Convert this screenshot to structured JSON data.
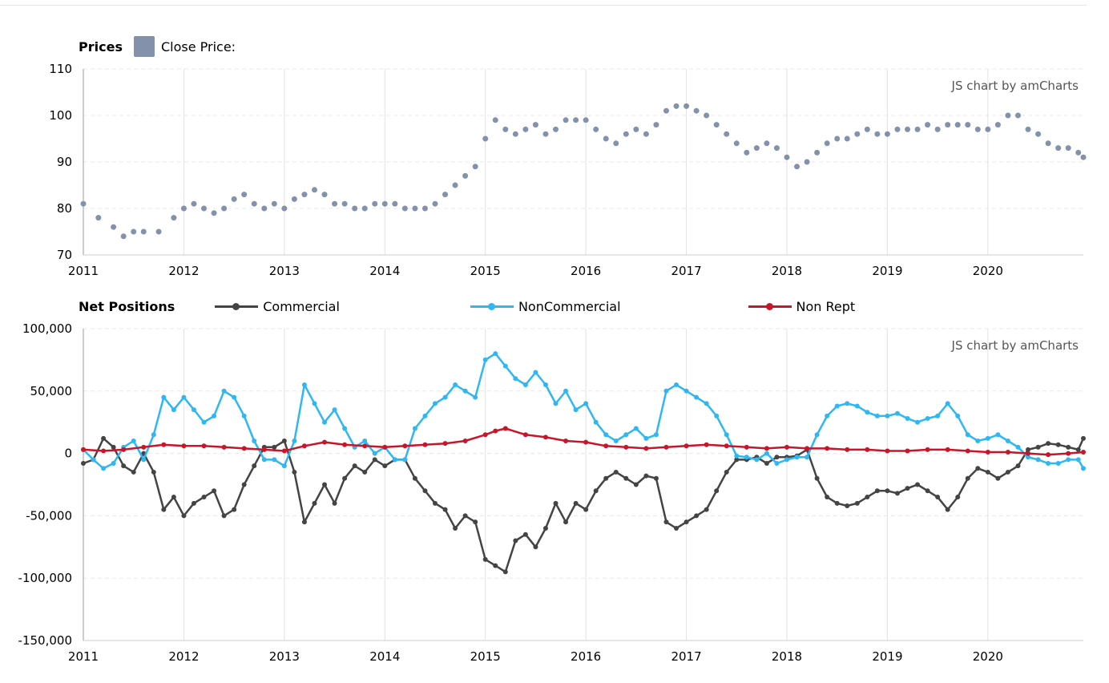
{
  "credit": "JS chart by amCharts",
  "chart_data": [
    {
      "type": "scatter",
      "title": "Prices",
      "legend": [
        {
          "name": "Close Price:",
          "color": "#8391AB"
        }
      ],
      "x_ticks": [
        "2011",
        "2012",
        "2013",
        "2014",
        "2015",
        "2016",
        "2017",
        "2018",
        "2019",
        "2020"
      ],
      "x_range": [
        2011.0,
        2020.95
      ],
      "ylim": [
        70,
        110
      ],
      "y_ticks": [
        "70",
        "80",
        "90",
        "100",
        "110"
      ],
      "grid": true,
      "series": [
        {
          "name": "Close Price:",
          "color": "#8391AB",
          "x": [
            2011.0,
            2011.15,
            2011.3,
            2011.4,
            2011.5,
            2011.6,
            2011.75,
            2011.9,
            2012.0,
            2012.1,
            2012.2,
            2012.3,
            2012.4,
            2012.5,
            2012.6,
            2012.7,
            2012.8,
            2012.9,
            2013.0,
            2013.1,
            2013.2,
            2013.3,
            2013.4,
            2013.5,
            2013.6,
            2013.7,
            2013.8,
            2013.9,
            2014.0,
            2014.1,
            2014.2,
            2014.3,
            2014.4,
            2014.5,
            2014.6,
            2014.7,
            2014.8,
            2014.9,
            2015.0,
            2015.1,
            2015.2,
            2015.3,
            2015.4,
            2015.5,
            2015.6,
            2015.7,
            2015.8,
            2015.9,
            2016.0,
            2016.1,
            2016.2,
            2016.3,
            2016.4,
            2016.5,
            2016.6,
            2016.7,
            2016.8,
            2016.9,
            2017.0,
            2017.1,
            2017.2,
            2017.3,
            2017.4,
            2017.5,
            2017.6,
            2017.7,
            2017.8,
            2017.9,
            2018.0,
            2018.1,
            2018.2,
            2018.3,
            2018.4,
            2018.5,
            2018.6,
            2018.7,
            2018.8,
            2018.9,
            2019.0,
            2019.1,
            2019.2,
            2019.3,
            2019.4,
            2019.5,
            2019.6,
            2019.7,
            2019.8,
            2019.9,
            2020.0,
            2020.1,
            2020.2,
            2020.3,
            2020.4,
            2020.5,
            2020.6,
            2020.7,
            2020.8,
            2020.9,
            2020.95
          ],
          "y": [
            81,
            78,
            76,
            74,
            75,
            75,
            75,
            78,
            80,
            81,
            80,
            79,
            80,
            82,
            83,
            81,
            80,
            81,
            80,
            82,
            83,
            84,
            83,
            81,
            81,
            80,
            80,
            81,
            81,
            81,
            80,
            80,
            80,
            81,
            83,
            85,
            87,
            89,
            95,
            99,
            97,
            96,
            97,
            98,
            96,
            97,
            99,
            99,
            99,
            97,
            95,
            94,
            96,
            97,
            96,
            98,
            101,
            102,
            102,
            101,
            100,
            98,
            96,
            94,
            92,
            93,
            94,
            93,
            91,
            89,
            90,
            92,
            94,
            95,
            95,
            96,
            97,
            96,
            96,
            97,
            97,
            97,
            98,
            97,
            98,
            98,
            98,
            97,
            97,
            98,
            100,
            100,
            97,
            96,
            94,
            93,
            93,
            92,
            91
          ]
        }
      ]
    },
    {
      "type": "line",
      "title": "Net Positions",
      "x_ticks": [
        "2011",
        "2012",
        "2013",
        "2014",
        "2015",
        "2016",
        "2017",
        "2018",
        "2019",
        "2020"
      ],
      "x_range": [
        2011.0,
        2020.95
      ],
      "ylim": [
        -150000,
        100000
      ],
      "y_ticks": [
        "-150,000",
        "-100,000",
        "-50,000",
        "0",
        "50,000",
        "100,000"
      ],
      "grid": true,
      "series": [
        {
          "name": "Commercial",
          "color": "#444444",
          "x": [
            2011.0,
            2011.1,
            2011.2,
            2011.3,
            2011.4,
            2011.5,
            2011.6,
            2011.7,
            2011.8,
            2011.9,
            2012.0,
            2012.1,
            2012.2,
            2012.3,
            2012.4,
            2012.5,
            2012.6,
            2012.7,
            2012.8,
            2012.9,
            2013.0,
            2013.1,
            2013.2,
            2013.3,
            2013.4,
            2013.5,
            2013.6,
            2013.7,
            2013.8,
            2013.9,
            2014.0,
            2014.1,
            2014.2,
            2014.3,
            2014.4,
            2014.5,
            2014.6,
            2014.7,
            2014.8,
            2014.9,
            2015.0,
            2015.1,
            2015.2,
            2015.3,
            2015.4,
            2015.5,
            2015.6,
            2015.7,
            2015.8,
            2015.9,
            2016.0,
            2016.1,
            2016.2,
            2016.3,
            2016.4,
            2016.5,
            2016.6,
            2016.7,
            2016.8,
            2016.9,
            2017.0,
            2017.1,
            2017.2,
            2017.3,
            2017.4,
            2017.5,
            2017.6,
            2017.7,
            2017.8,
            2017.9,
            2018.0,
            2018.1,
            2018.2,
            2018.3,
            2018.4,
            2018.5,
            2018.6,
            2018.7,
            2018.8,
            2018.9,
            2019.0,
            2019.1,
            2019.2,
            2019.3,
            2019.4,
            2019.5,
            2019.6,
            2019.7,
            2019.8,
            2019.9,
            2020.0,
            2020.1,
            2020.2,
            2020.3,
            2020.4,
            2020.5,
            2020.6,
            2020.7,
            2020.8,
            2020.9,
            2020.95
          ],
          "y": [
            -8000,
            -5000,
            12000,
            5000,
            -10000,
            -15000,
            0,
            -15000,
            -45000,
            -35000,
            -50000,
            -40000,
            -35000,
            -30000,
            -50000,
            -45000,
            -25000,
            -10000,
            5000,
            5000,
            10000,
            -15000,
            -55000,
            -40000,
            -25000,
            -40000,
            -20000,
            -10000,
            -15000,
            -5000,
            -10000,
            -5000,
            -5000,
            -20000,
            -30000,
            -40000,
            -45000,
            -60000,
            -50000,
            -55000,
            -85000,
            -90000,
            -95000,
            -70000,
            -65000,
            -75000,
            -60000,
            -40000,
            -55000,
            -40000,
            -45000,
            -30000,
            -20000,
            -15000,
            -20000,
            -25000,
            -18000,
            -20000,
            -55000,
            -60000,
            -55000,
            -50000,
            -45000,
            -30000,
            -15000,
            -5000,
            -5000,
            -3000,
            -8000,
            -3000,
            -3000,
            -2000,
            3000,
            -20000,
            -35000,
            -40000,
            -42000,
            -40000,
            -35000,
            -30000,
            -30000,
            -32000,
            -28000,
            -25000,
            -30000,
            -35000,
            -45000,
            -35000,
            -20000,
            -12000,
            -15000,
            -20000,
            -15000,
            -10000,
            3000,
            5000,
            8000,
            7000,
            5000,
            3000,
            12000
          ]
        },
        {
          "name": "NonCommercial",
          "color": "#2EB7F2",
          "x": [
            2011.0,
            2011.1,
            2011.2,
            2011.3,
            2011.4,
            2011.5,
            2011.6,
            2011.7,
            2011.8,
            2011.9,
            2012.0,
            2012.1,
            2012.2,
            2012.3,
            2012.4,
            2012.5,
            2012.6,
            2012.7,
            2012.8,
            2012.9,
            2013.0,
            2013.1,
            2013.2,
            2013.3,
            2013.4,
            2013.5,
            2013.6,
            2013.7,
            2013.8,
            2013.9,
            2014.0,
            2014.1,
            2014.2,
            2014.3,
            2014.4,
            2014.5,
            2014.6,
            2014.7,
            2014.8,
            2014.9,
            2015.0,
            2015.1,
            2015.2,
            2015.3,
            2015.4,
            2015.5,
            2015.6,
            2015.7,
            2015.8,
            2015.9,
            2016.0,
            2016.1,
            2016.2,
            2016.3,
            2016.4,
            2016.5,
            2016.6,
            2016.7,
            2016.8,
            2016.9,
            2017.0,
            2017.1,
            2017.2,
            2017.3,
            2017.4,
            2017.5,
            2017.6,
            2017.7,
            2017.8,
            2017.9,
            2018.0,
            2018.1,
            2018.2,
            2018.3,
            2018.4,
            2018.5,
            2018.6,
            2018.7,
            2018.8,
            2018.9,
            2019.0,
            2019.1,
            2019.2,
            2019.3,
            2019.4,
            2019.5,
            2019.6,
            2019.7,
            2019.8,
            2019.9,
            2020.0,
            2020.1,
            2020.2,
            2020.3,
            2020.4,
            2020.5,
            2020.6,
            2020.7,
            2020.8,
            2020.9,
            2020.95
          ],
          "y": [
            3000,
            -5000,
            -12000,
            -8000,
            5000,
            10000,
            -5000,
            15000,
            45000,
            35000,
            45000,
            35000,
            25000,
            30000,
            50000,
            45000,
            30000,
            10000,
            -5000,
            -5000,
            -10000,
            10000,
            55000,
            40000,
            25000,
            35000,
            20000,
            5000,
            10000,
            0,
            5000,
            -5000,
            -5000,
            20000,
            30000,
            40000,
            45000,
            55000,
            50000,
            45000,
            75000,
            80000,
            70000,
            60000,
            55000,
            65000,
            55000,
            40000,
            50000,
            35000,
            40000,
            25000,
            15000,
            10000,
            15000,
            20000,
            12000,
            15000,
            50000,
            55000,
            50000,
            45000,
            40000,
            30000,
            15000,
            -2000,
            -3000,
            -5000,
            0,
            -8000,
            -5000,
            -3000,
            -3000,
            15000,
            30000,
            38000,
            40000,
            38000,
            33000,
            30000,
            30000,
            32000,
            28000,
            25000,
            28000,
            30000,
            40000,
            30000,
            15000,
            10000,
            12000,
            15000,
            10000,
            5000,
            -3000,
            -5000,
            -8000,
            -8000,
            -5000,
            -5000,
            -12000
          ]
        },
        {
          "name": "Non Rept",
          "color": "#C8152A",
          "x": [
            2011.0,
            2011.2,
            2011.4,
            2011.6,
            2011.8,
            2012.0,
            2012.2,
            2012.4,
            2012.6,
            2012.8,
            2013.0,
            2013.2,
            2013.4,
            2013.6,
            2013.8,
            2014.0,
            2014.2,
            2014.4,
            2014.6,
            2014.8,
            2015.0,
            2015.1,
            2015.2,
            2015.4,
            2015.6,
            2015.8,
            2016.0,
            2016.2,
            2016.4,
            2016.6,
            2016.8,
            2017.0,
            2017.2,
            2017.4,
            2017.6,
            2017.8,
            2018.0,
            2018.2,
            2018.4,
            2018.6,
            2018.8,
            2019.0,
            2019.2,
            2019.4,
            2019.6,
            2019.8,
            2020.0,
            2020.2,
            2020.4,
            2020.6,
            2020.8,
            2020.95
          ],
          "y": [
            3000,
            2000,
            3000,
            5000,
            7000,
            6000,
            6000,
            5000,
            4000,
            3000,
            2000,
            6000,
            9000,
            7000,
            6000,
            5000,
            6000,
            7000,
            8000,
            10000,
            15000,
            18000,
            20000,
            15000,
            13000,
            10000,
            9000,
            6000,
            5000,
            4000,
            5000,
            6000,
            7000,
            6000,
            5000,
            4000,
            5000,
            4000,
            4000,
            3000,
            3000,
            2000,
            2000,
            3000,
            3000,
            2000,
            1000,
            1000,
            0,
            -1000,
            0,
            1000
          ]
        }
      ]
    }
  ]
}
